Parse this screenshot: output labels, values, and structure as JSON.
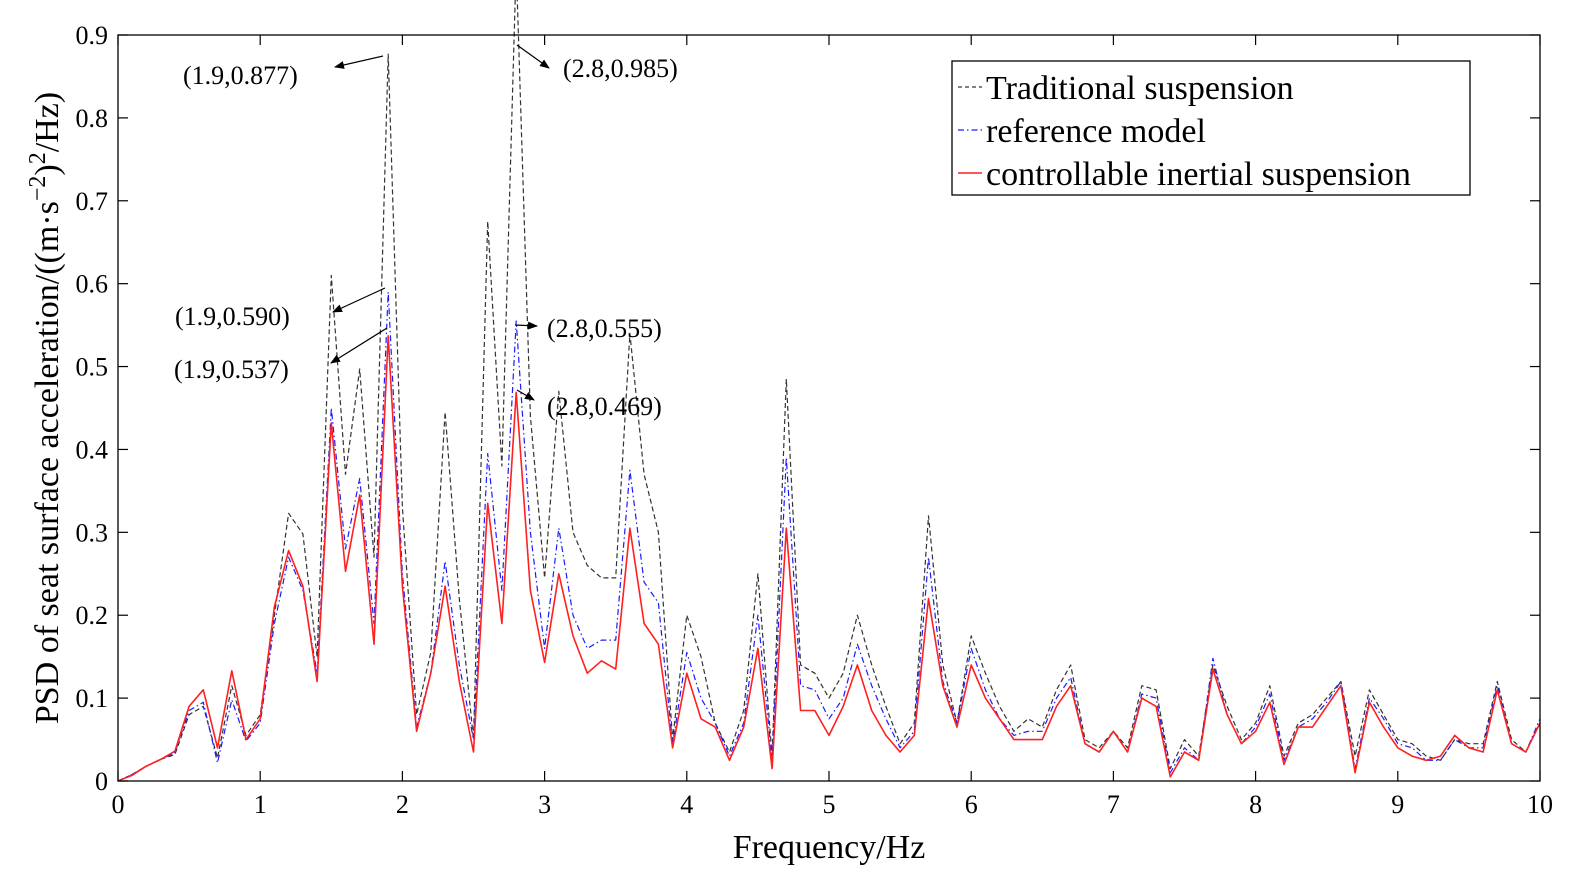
{
  "chart_data": {
    "type": "line",
    "title": "",
    "xlabel": "Frequency/Hz",
    "ylabel_main": "PSD of seat surface acceleration/((m·s",
    "ylabel_exp1": "−2",
    "ylabel_mid": ")",
    "ylabel_exp2": "2",
    "ylabel_end": "/Hz)",
    "xlim": [
      0,
      10
    ],
    "ylim": [
      0,
      0.9
    ],
    "x_ticks": [
      0,
      1,
      2,
      3,
      4,
      5,
      6,
      7,
      8,
      9,
      10
    ],
    "x_tick_labels": [
      "0",
      "1",
      "2",
      "3",
      "4",
      "5",
      "6",
      "7",
      "8",
      "9",
      "10"
    ],
    "y_ticks": [
      0,
      0.1,
      0.2,
      0.3,
      0.4,
      0.5,
      0.6,
      0.7,
      0.8,
      0.9
    ],
    "y_tick_labels": [
      "0",
      "0.1",
      "0.2",
      "0.3",
      "0.4",
      "0.5",
      "0.6",
      "0.7",
      "0.8",
      "0.9"
    ],
    "grid": false,
    "legend_position": "top-right",
    "x": [
      0,
      0.1,
      0.2,
      0.3,
      0.4,
      0.5,
      0.6,
      0.7,
      0.8,
      0.9,
      1.0,
      1.1,
      1.2,
      1.3,
      1.4,
      1.5,
      1.6,
      1.7,
      1.8,
      1.9,
      2.0,
      2.1,
      2.2,
      2.3,
      2.4,
      2.5,
      2.6,
      2.7,
      2.8,
      2.9,
      3.0,
      3.1,
      3.2,
      3.3,
      3.4,
      3.5,
      3.6,
      3.7,
      3.8,
      3.9,
      4.0,
      4.1,
      4.2,
      4.3,
      4.4,
      4.5,
      4.6,
      4.7,
      4.8,
      4.9,
      5.0,
      5.1,
      5.2,
      5.3,
      5.4,
      5.5,
      5.6,
      5.7,
      5.8,
      5.9,
      6.0,
      6.1,
      6.2,
      6.3,
      6.4,
      6.5,
      6.6,
      6.7,
      6.8,
      6.9,
      7.0,
      7.1,
      7.2,
      7.3,
      7.4,
      7.5,
      7.6,
      7.7,
      7.8,
      7.9,
      8.0,
      8.1,
      8.2,
      8.3,
      8.4,
      8.5,
      8.6,
      8.7,
      8.8,
      8.9,
      9.0,
      9.1,
      9.2,
      9.3,
      9.4,
      9.5,
      9.6,
      9.7,
      9.8,
      9.9,
      10.0
    ],
    "series": [
      {
        "name": "Traditional suspension",
        "color": "#333333",
        "style": "dashed",
        "values": [
          0,
          0.008,
          0.018,
          0.026,
          0.032,
          0.08,
          0.09,
          0.028,
          0.115,
          0.055,
          0.08,
          0.2,
          0.323,
          0.298,
          0.15,
          0.61,
          0.37,
          0.497,
          0.27,
          0.877,
          0.33,
          0.08,
          0.155,
          0.445,
          0.22,
          0.05,
          0.675,
          0.38,
          0.985,
          0.44,
          0.245,
          0.47,
          0.3,
          0.26,
          0.245,
          0.245,
          0.54,
          0.37,
          0.3,
          0.05,
          0.2,
          0.15,
          0.07,
          0.035,
          0.085,
          0.25,
          0.03,
          0.485,
          0.14,
          0.13,
          0.1,
          0.13,
          0.2,
          0.14,
          0.09,
          0.045,
          0.07,
          0.32,
          0.14,
          0.07,
          0.175,
          0.13,
          0.09,
          0.06,
          0.075,
          0.065,
          0.11,
          0.14,
          0.05,
          0.04,
          0.06,
          0.04,
          0.115,
          0.11,
          0.015,
          0.05,
          0.03,
          0.14,
          0.09,
          0.05,
          0.07,
          0.115,
          0.03,
          0.07,
          0.08,
          0.1,
          0.12,
          0.03,
          0.11,
          0.08,
          0.05,
          0.045,
          0.03,
          0.025,
          0.05,
          0.045,
          0.045,
          0.12,
          0.05,
          0.035,
          0.07
        ]
      },
      {
        "name": "reference model",
        "color": "#1a1aff",
        "style": "dashdot",
        "values": [
          0,
          0.008,
          0.018,
          0.026,
          0.034,
          0.085,
          0.095,
          0.022,
          0.098,
          0.048,
          0.07,
          0.19,
          0.27,
          0.23,
          0.13,
          0.45,
          0.28,
          0.365,
          0.19,
          0.59,
          0.25,
          0.065,
          0.13,
          0.265,
          0.14,
          0.05,
          0.395,
          0.23,
          0.555,
          0.3,
          0.16,
          0.305,
          0.2,
          0.16,
          0.17,
          0.17,
          0.375,
          0.24,
          0.215,
          0.045,
          0.155,
          0.1,
          0.07,
          0.03,
          0.07,
          0.2,
          0.025,
          0.39,
          0.115,
          0.11,
          0.075,
          0.1,
          0.165,
          0.115,
          0.075,
          0.04,
          0.06,
          0.27,
          0.12,
          0.07,
          0.16,
          0.11,
          0.075,
          0.055,
          0.06,
          0.06,
          0.1,
          0.125,
          0.045,
          0.035,
          0.06,
          0.035,
          0.105,
          0.1,
          0.01,
          0.04,
          0.025,
          0.148,
          0.08,
          0.045,
          0.065,
          0.105,
          0.025,
          0.065,
          0.075,
          0.095,
          0.12,
          0.015,
          0.1,
          0.075,
          0.045,
          0.04,
          0.025,
          0.025,
          0.05,
          0.04,
          0.04,
          0.115,
          0.045,
          0.035,
          0.075
        ]
      },
      {
        "name": "controllable inertial suspension",
        "color": "#ff2020",
        "style": "solid",
        "values": [
          0,
          0.007,
          0.018,
          0.026,
          0.036,
          0.09,
          0.11,
          0.04,
          0.133,
          0.05,
          0.075,
          0.21,
          0.278,
          0.235,
          0.12,
          0.432,
          0.253,
          0.345,
          0.165,
          0.537,
          0.235,
          0.06,
          0.13,
          0.235,
          0.12,
          0.035,
          0.335,
          0.19,
          0.469,
          0.23,
          0.143,
          0.25,
          0.175,
          0.13,
          0.145,
          0.135,
          0.305,
          0.19,
          0.165,
          0.04,
          0.13,
          0.075,
          0.065,
          0.025,
          0.065,
          0.16,
          0.015,
          0.305,
          0.085,
          0.085,
          0.055,
          0.09,
          0.14,
          0.085,
          0.055,
          0.035,
          0.055,
          0.22,
          0.115,
          0.065,
          0.14,
          0.1,
          0.075,
          0.05,
          0.05,
          0.05,
          0.09,
          0.115,
          0.045,
          0.035,
          0.06,
          0.035,
          0.1,
          0.09,
          0.005,
          0.035,
          0.025,
          0.135,
          0.08,
          0.045,
          0.06,
          0.095,
          0.02,
          0.065,
          0.065,
          0.09,
          0.115,
          0.01,
          0.095,
          0.065,
          0.04,
          0.03,
          0.025,
          0.03,
          0.055,
          0.04,
          0.035,
          0.11,
          0.045,
          0.035,
          0.07
        ]
      }
    ],
    "annotations": [
      {
        "text": "(1.9,0.877)"
      },
      {
        "text": "(2.8,0.985)"
      },
      {
        "text": "(1.9,0.590)"
      },
      {
        "text": "(1.9,0.537)"
      },
      {
        "text": "(2.8,0.555)"
      },
      {
        "text": "(2.8,0.469)"
      }
    ]
  }
}
